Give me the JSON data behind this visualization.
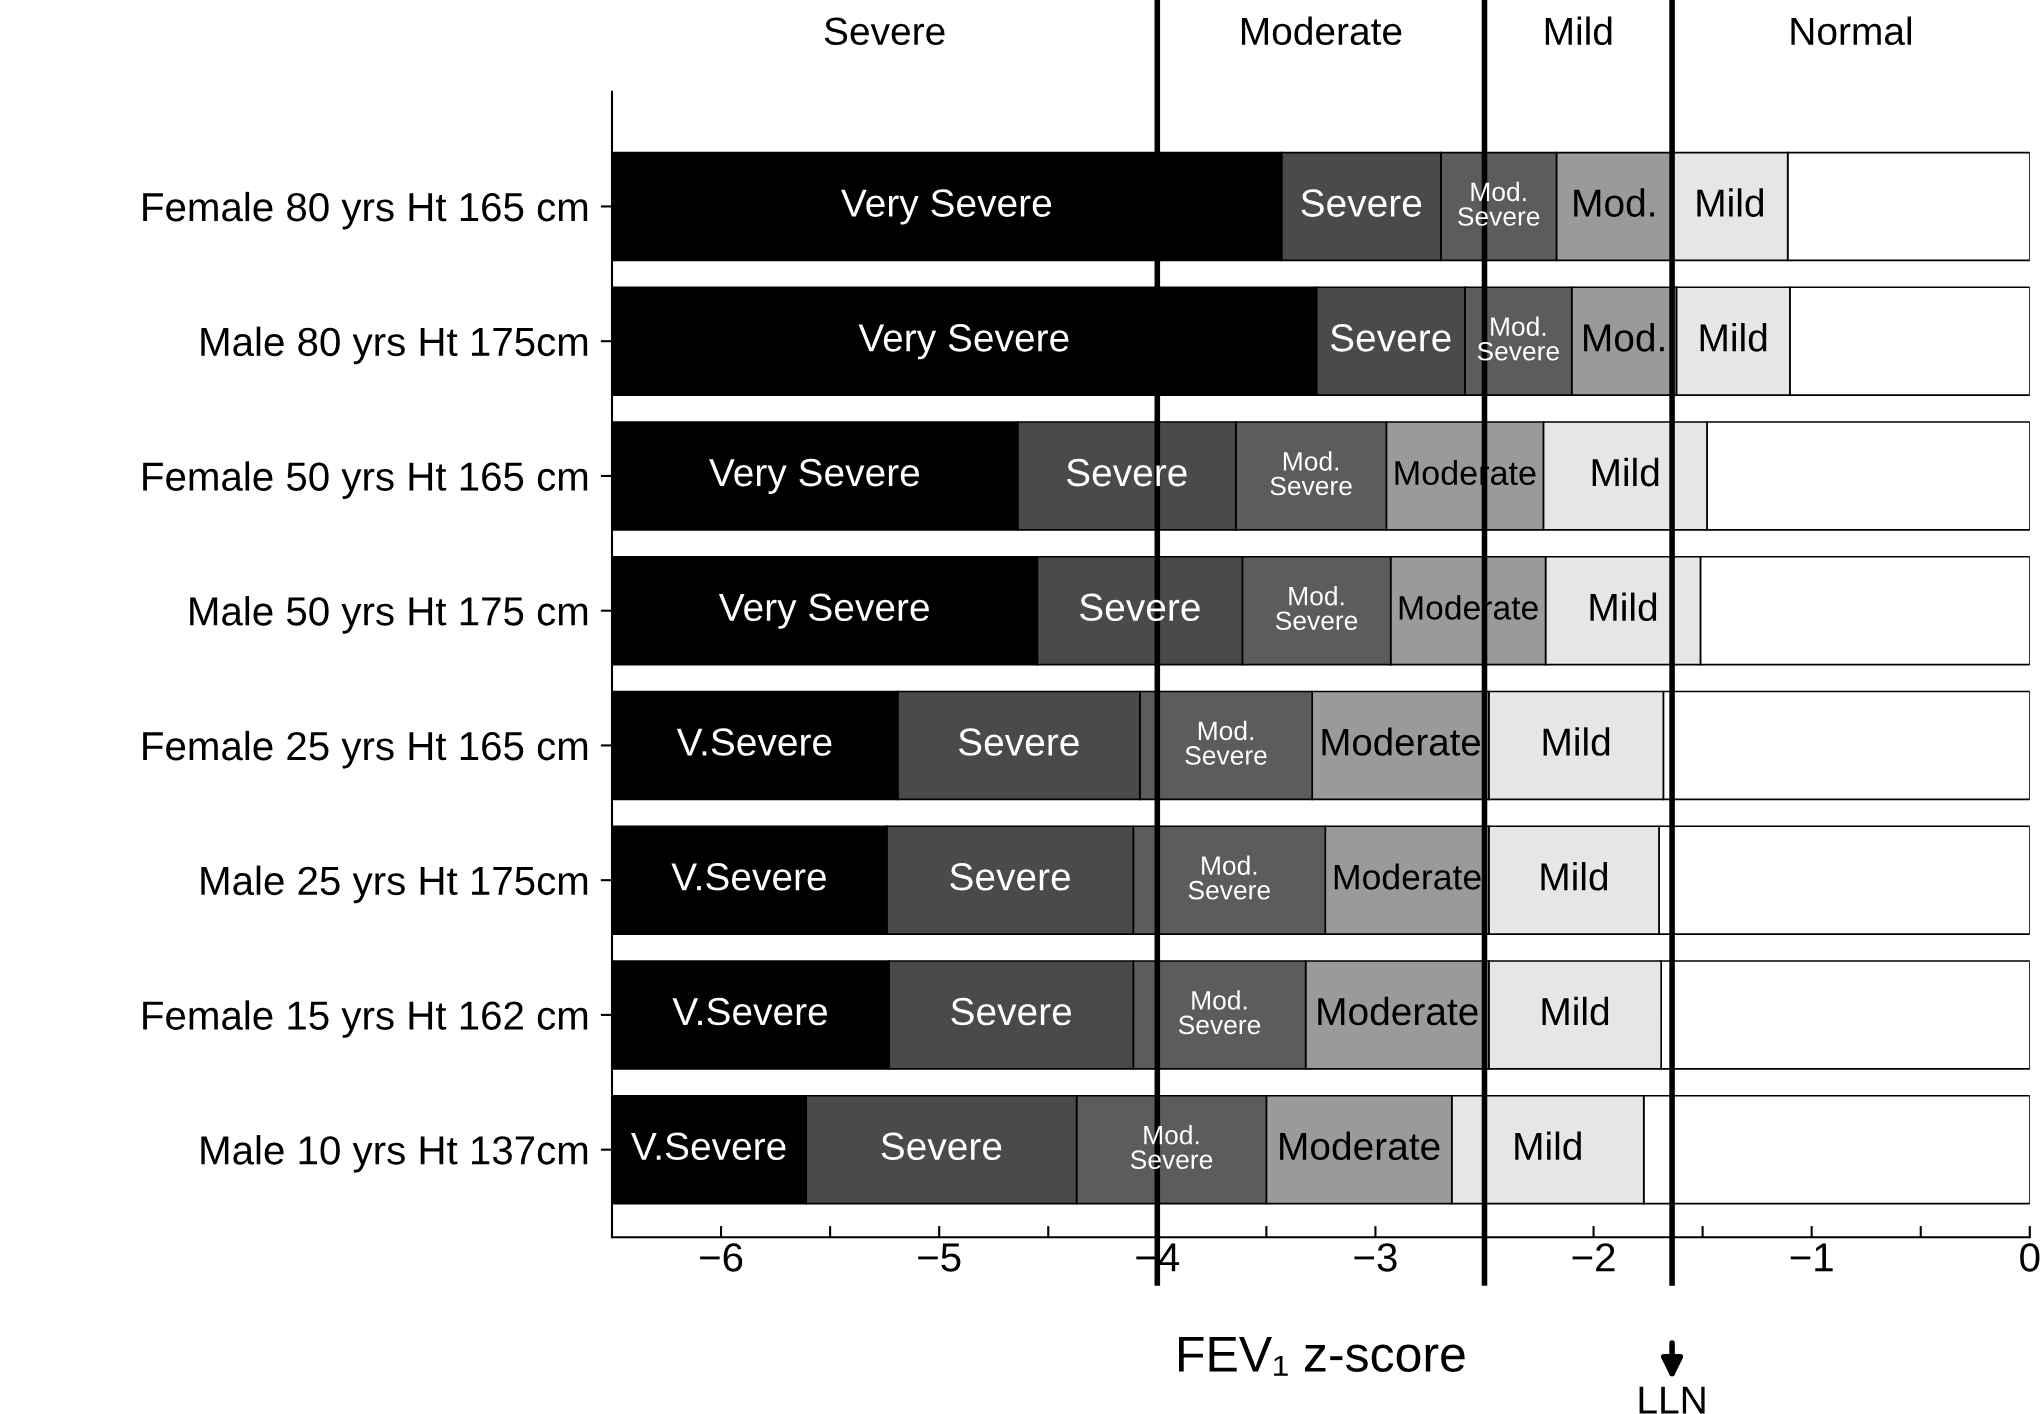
{
  "chart_data": {
    "type": "bar",
    "orientation": "horizontal",
    "stacked": true,
    "xlabel": "FEV₁ z-score",
    "categories": [
      "Female 80 yrs Ht 165 cm",
      "Male 80 yrs Ht 175cm",
      "Female 50 yrs Ht 165 cm",
      "Male 50 yrs Ht 175 cm",
      "Female 25 yrs Ht 165 cm",
      "Male 25 yrs Ht 175cm",
      "Female 15 yrs Ht 162 cm",
      "Male 10 yrs Ht 137cm"
    ],
    "series": [
      {
        "color": "#ffffff",
        "values": [
          -1.11,
          -1.1,
          -1.48,
          -1.51,
          -1.68,
          -1.7,
          -1.69,
          -1.77
        ],
        "value_labels": [
          null,
          null,
          null,
          null,
          null,
          null,
          null,
          null
        ]
      },
      {
        "color": "#e6e6e6",
        "values": [
          -0.53,
          -0.52,
          -0.75,
          -0.71,
          -0.8,
          -0.78,
          -0.79,
          -0.88
        ],
        "value_labels": [
          "Mild",
          "Mild",
          "Mild",
          "Mild",
          "Mild",
          "Mild",
          "Mild",
          "Mild"
        ]
      },
      {
        "color": "#9a9a9a",
        "values": [
          -0.53,
          -0.48,
          -0.72,
          -0.71,
          -0.81,
          -0.75,
          -0.84,
          -0.85
        ],
        "value_labels": [
          "Mod.",
          "Mod.",
          "Moderate",
          "Moderate",
          "Moderate",
          "Moderate",
          "Moderate",
          "Moderate"
        ]
      },
      {
        "color": "#5c5c5c",
        "values": [
          -0.53,
          -0.49,
          -0.69,
          -0.68,
          -0.79,
          -0.88,
          -0.79,
          -0.87
        ],
        "value_labels": [
          "Mod.\nSevere",
          "Mod.\nSevere",
          "Mod.\nSevere",
          "Mod.\nSevere",
          "Mod.\nSevere",
          "Mod.\nSevere",
          "Mod.\nSevere",
          "Mod.\nSevere"
        ]
      },
      {
        "color": "#4a4a4a",
        "values": [
          -0.73,
          -0.68,
          -1.0,
          -0.94,
          -1.11,
          -1.13,
          -1.12,
          -1.24
        ],
        "value_labels": [
          "Severe",
          "Severe",
          "Severe",
          "Severe",
          "Severe",
          "Severe",
          "Severe",
          "Severe"
        ]
      },
      {
        "color": "#000000",
        "values": [
          -3.07,
          -3.23,
          -1.86,
          -1.95,
          -1.31,
          -1.26,
          -1.27,
          -0.89
        ],
        "value_labels": [
          "Very Severe",
          "Very Severe",
          "Very Severe",
          "Very Severe",
          "V.Severe",
          "V.Severe",
          "V.Severe",
          "V.Severe"
        ]
      }
    ],
    "xlim": [
      -6.5,
      0
    ],
    "xticks": [
      {
        "value": -6.5,
        "label": null
      },
      -6,
      {
        "value": -5.5,
        "label": null
      },
      -5,
      {
        "value": -4.5,
        "label": null
      },
      -4,
      {
        "value": -3.5,
        "label": null
      },
      -3,
      {
        "value": -2.5,
        "label": null
      },
      -2,
      {
        "value": -1.5,
        "label": null
      },
      -1,
      {
        "value": -0.5,
        "label": null
      },
      0
    ],
    "ref_lines": [
      {
        "axis": "x",
        "value": -4,
        "color": "#000000"
      },
      {
        "axis": "x",
        "value": -2.5,
        "color": "#000000"
      },
      {
        "axis": "x",
        "value": -1.64,
        "color": "#000000",
        "label": "LLN"
      }
    ],
    "annotations": [
      "Severe",
      "Moderate",
      "Mild",
      "Normal"
    ],
    "grid": false,
    "legend": false
  }
}
